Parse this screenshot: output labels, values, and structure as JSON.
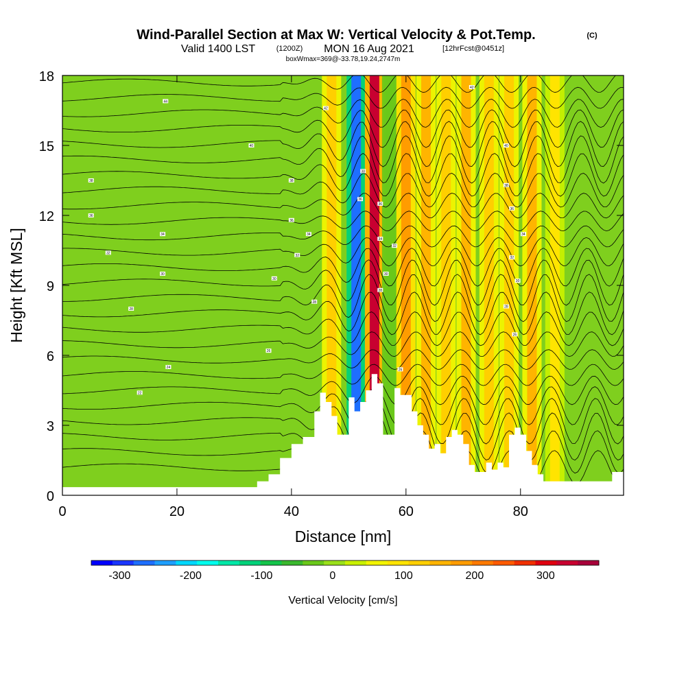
{
  "chart_data": {
    "type": "heatmap",
    "title": "Wind-Parallel Section at Max W: Vertical Velocity & Pot.Temp.",
    "title_mark": "(C)",
    "subtitle_a": "Valid 1400 LST",
    "subtitle_b": "(1200Z)",
    "subtitle_c": "MON 16 Aug 2021",
    "subtitle_d": "[12hrFcst@0451z]",
    "subtitle_small": "boxWmax=369@-33.78,19.24,2747m",
    "xlabel": "Distance [nm]",
    "ylabel": "Height [Kft MSL]",
    "xlim": [
      0,
      98
    ],
    "ylim": [
      0,
      18
    ],
    "xticks": [
      "0",
      "20",
      "40",
      "60",
      "80"
    ],
    "xtick_values": [
      0,
      20,
      40,
      60,
      80
    ],
    "yticks": [
      "0",
      "3",
      "6",
      "9",
      "12",
      "15",
      "18"
    ],
    "ytick_values": [
      0,
      3,
      6,
      9,
      12,
      15,
      18
    ],
    "colorbar": {
      "label": "Vertical Velocity [cm/s]",
      "ticks": [
        "-300",
        "-200",
        "-100",
        "0",
        "100",
        "200",
        "300"
      ],
      "tick_values": [
        -300,
        -200,
        -100,
        0,
        100,
        200,
        300
      ],
      "range": [
        -340,
        375
      ],
      "colors": [
        "#0000ff",
        "#1a36ff",
        "#1e6fff",
        "#1e9fff",
        "#00d8ff",
        "#00ffee",
        "#00e8a8",
        "#00d27a",
        "#14c44a",
        "#3ab82e",
        "#6ac81a",
        "#9ae01a",
        "#c8f000",
        "#f2f400",
        "#ffe400",
        "#ffcf00",
        "#ffb400",
        "#ff9c00",
        "#ff7a00",
        "#ff5a00",
        "#f03000",
        "#e00010",
        "#c80030",
        "#a8003a"
      ]
    },
    "wave_columns": [
      {
        "x": 47.0,
        "w": 120,
        "top_fraction": 1.0
      },
      {
        "x": 51.3,
        "w": -280,
        "top_fraction": 1.0
      },
      {
        "x": 54.5,
        "w": 330,
        "top_fraction": 1.0
      },
      {
        "x": 57.5,
        "w": -40,
        "top_fraction": 1.0
      },
      {
        "x": 60.0,
        "w": 180,
        "top_fraction": 1.0
      },
      {
        "x": 63.5,
        "w": 140,
        "top_fraction": 1.0
      },
      {
        "x": 67.0,
        "w": 130,
        "top_fraction": 1.0
      },
      {
        "x": 70.5,
        "w": 160,
        "top_fraction": 1.0
      },
      {
        "x": 74.5,
        "w": 110,
        "top_fraction": 1.0
      },
      {
        "x": 78.0,
        "w": 130,
        "top_fraction": 1.0
      },
      {
        "x": 82.0,
        "w": 140,
        "top_fraction": 1.0
      },
      {
        "x": 86.0,
        "w": 80,
        "top_fraction": 1.0
      }
    ],
    "terrain_kft": [
      [
        0,
        0.35
      ],
      [
        33,
        0.35
      ],
      [
        34,
        0.6
      ],
      [
        36,
        0.9
      ],
      [
        38,
        1.6
      ],
      [
        40,
        2.2
      ],
      [
        42,
        2.5
      ],
      [
        44,
        3.6
      ],
      [
        45,
        4.4
      ],
      [
        46,
        4.0
      ],
      [
        47,
        3.4
      ],
      [
        48,
        2.6
      ],
      [
        49,
        2.6
      ],
      [
        50,
        4.2
      ],
      [
        51,
        3.6
      ],
      [
        52,
        4.0
      ],
      [
        53,
        4.5
      ],
      [
        54,
        5.2
      ],
      [
        55,
        4.8
      ],
      [
        56,
        2.6
      ],
      [
        57,
        2.6
      ],
      [
        58,
        4.6
      ],
      [
        59,
        4.3
      ],
      [
        60,
        4.3
      ],
      [
        61,
        3.6
      ],
      [
        62,
        3.0
      ],
      [
        63,
        2.6
      ],
      [
        64,
        2.0
      ],
      [
        65,
        2.2
      ],
      [
        66,
        1.8
      ],
      [
        67,
        2.5
      ],
      [
        68,
        2.8
      ],
      [
        69,
        2.6
      ],
      [
        70,
        2.2
      ],
      [
        71,
        1.3
      ],
      [
        72,
        1.0
      ],
      [
        73,
        1.0
      ],
      [
        74,
        1.4
      ],
      [
        75,
        1.1
      ],
      [
        76,
        1.4
      ],
      [
        77,
        1.2
      ],
      [
        78,
        2.6
      ],
      [
        79,
        2.9
      ],
      [
        80,
        2.6
      ],
      [
        81,
        1.9
      ],
      [
        82,
        1.3
      ],
      [
        83,
        0.9
      ],
      [
        84,
        0.6
      ],
      [
        95,
        0.6
      ],
      [
        96,
        1.0
      ],
      [
        98,
        1.0
      ]
    ],
    "isentrope_labels": [
      {
        "x": 18,
        "y": 16.9,
        "text": "44"
      },
      {
        "x": 33,
        "y": 15.0,
        "text": "40"
      },
      {
        "x": 46,
        "y": 16.6,
        "text": "42"
      },
      {
        "x": 5,
        "y": 13.5,
        "text": "38"
      },
      {
        "x": 40,
        "y": 13.5,
        "text": "38"
      },
      {
        "x": 5,
        "y": 12.0,
        "text": "36"
      },
      {
        "x": 40,
        "y": 11.8,
        "text": "36"
      },
      {
        "x": 43,
        "y": 11.2,
        "text": "34"
      },
      {
        "x": 17.5,
        "y": 11.2,
        "text": "34"
      },
      {
        "x": 8,
        "y": 10.4,
        "text": "32"
      },
      {
        "x": 41,
        "y": 10.3,
        "text": "32"
      },
      {
        "x": 17.5,
        "y": 9.5,
        "text": "30"
      },
      {
        "x": 37,
        "y": 9.3,
        "text": "30"
      },
      {
        "x": 12,
        "y": 8.0,
        "text": "28"
      },
      {
        "x": 44,
        "y": 8.3,
        "text": "28"
      },
      {
        "x": 36,
        "y": 6.2,
        "text": "26"
      },
      {
        "x": 18.5,
        "y": 5.5,
        "text": "24"
      },
      {
        "x": 13.5,
        "y": 4.4,
        "text": "22"
      },
      {
        "x": 52.5,
        "y": 13.9,
        "text": "38"
      },
      {
        "x": 52,
        "y": 12.7,
        "text": "36"
      },
      {
        "x": 55.5,
        "y": 12.5,
        "text": "36"
      },
      {
        "x": 55.5,
        "y": 11.0,
        "text": "34"
      },
      {
        "x": 58,
        "y": 10.7,
        "text": "32"
      },
      {
        "x": 56.5,
        "y": 9.5,
        "text": "30"
      },
      {
        "x": 55.5,
        "y": 8.8,
        "text": "28"
      },
      {
        "x": 59,
        "y": 5.4,
        "text": "26"
      },
      {
        "x": 71.5,
        "y": 17.5,
        "text": "42"
      },
      {
        "x": 77.5,
        "y": 15.0,
        "text": "40"
      },
      {
        "x": 77.5,
        "y": 13.3,
        "text": "38"
      },
      {
        "x": 78.5,
        "y": 12.3,
        "text": "36"
      },
      {
        "x": 80.5,
        "y": 11.2,
        "text": "34"
      },
      {
        "x": 78.5,
        "y": 10.2,
        "text": "32"
      },
      {
        "x": 79.5,
        "y": 9.2,
        "text": "30"
      },
      {
        "x": 77.5,
        "y": 8.1,
        "text": "28"
      },
      {
        "x": 79,
        "y": 6.9,
        "text": "26"
      }
    ]
  }
}
